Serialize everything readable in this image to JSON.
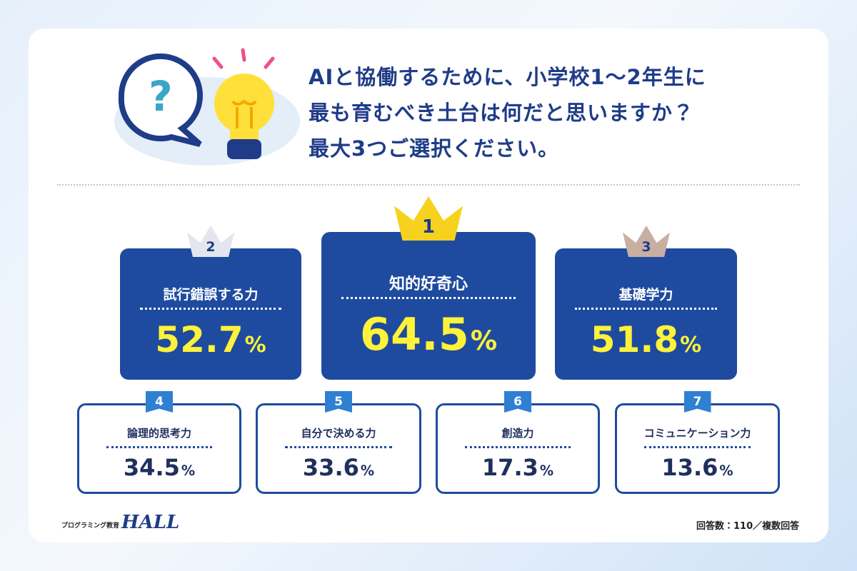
{
  "title_lines": [
    "AIと協働するために、小学校1〜2年生に",
    "最も育むべき土台は何だと思いますか？",
    "最大3つご選択ください。"
  ],
  "items": [
    {
      "rank": 1,
      "label": "知的好奇心",
      "value": 64.5,
      "unit": "%"
    },
    {
      "rank": 2,
      "label": "試行錯誤する力",
      "value": 52.7,
      "unit": "%"
    },
    {
      "rank": 3,
      "label": "基礎学力",
      "value": 51.8,
      "unit": "%"
    },
    {
      "rank": 4,
      "label": "論理的思考力",
      "value": 34.5,
      "unit": "%"
    },
    {
      "rank": 5,
      "label": "自分で決める力",
      "value": 33.6,
      "unit": "%"
    },
    {
      "rank": 6,
      "label": "創造力",
      "value": 17.3,
      "unit": "%"
    },
    {
      "rank": 7,
      "label": "コミュニケーション力",
      "value": 13.6,
      "unit": "%"
    }
  ],
  "footer": {
    "brand_caption": "プログラミング教育",
    "brand_logo": "HALL",
    "note": "回答数：110／複数回答"
  }
}
